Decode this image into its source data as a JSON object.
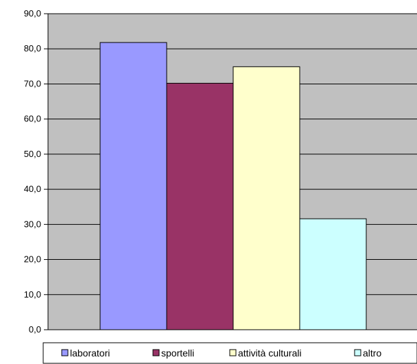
{
  "chart_data": {
    "type": "bar",
    "ylim": [
      0,
      90
    ],
    "yticks": [
      "0,0",
      "10,0",
      "20,0",
      "30,0",
      "40,0",
      "50,0",
      "60,0",
      "70,0",
      "80,0",
      "90,0"
    ],
    "grid": true,
    "legend_position": "bottom",
    "series": [
      {
        "name": "laboratori",
        "value": 81.8,
        "color": "#9999ff"
      },
      {
        "name": "sportelli",
        "value": 70.2,
        "color": "#993366"
      },
      {
        "name": "attività culturali",
        "value": 74.9,
        "color": "#ffffcc"
      },
      {
        "name": "altro",
        "value": 31.6,
        "color": "#ccffff"
      }
    ],
    "plot_background": "#c0c0c0"
  }
}
